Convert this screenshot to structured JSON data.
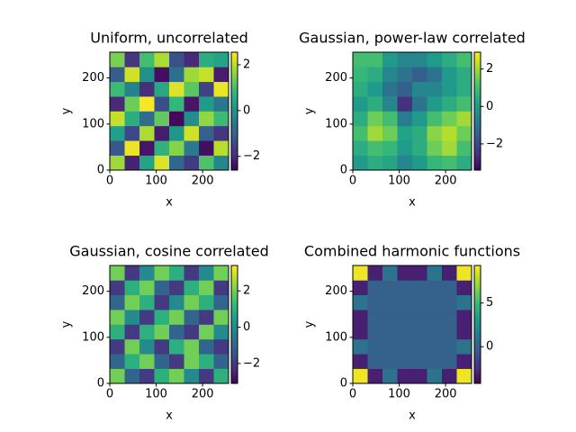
{
  "chart_data": [
    {
      "type": "heatmap",
      "title": "Uniform, uncorrelated",
      "xlabel": "x",
      "ylabel": "y",
      "colormap": "viridis",
      "xlim": [
        0,
        256
      ],
      "ylim": [
        0,
        256
      ],
      "xticks": [
        0,
        100,
        200
      ],
      "yticks": [
        0,
        100,
        200
      ],
      "clim": [
        -2.6,
        2.55
      ],
      "cticks": [
        {
          "value": -2,
          "label": "−2"
        },
        0,
        2
      ],
      "z": [
        [
          1.8,
          -2.1,
          0.4,
          2.3,
          -0.9,
          -1.7,
          1.1,
          -0.2
        ],
        [
          -1.2,
          2.4,
          -2.3,
          0.7,
          1.6,
          -0.5,
          -2.4,
          2.0
        ],
        [
          0.3,
          -1.5,
          1.9,
          -2.2,
          0.1,
          2.2,
          -1.0,
          -1.8
        ],
        [
          2.1,
          0.6,
          -0.8,
          1.3,
          -2.5,
          -0.1,
          1.7,
          0.9
        ],
        [
          -2.0,
          1.4,
          2.5,
          -1.4,
          0.8,
          -2.3,
          0.2,
          -0.6
        ],
        [
          0.9,
          -0.3,
          -1.9,
          0.5,
          2.3,
          1.2,
          -1.6,
          2.4
        ],
        [
          -1.1,
          2.2,
          0.0,
          -2.4,
          -0.7,
          1.8,
          2.1,
          -2.2
        ],
        [
          1.5,
          -1.8,
          1.0,
          1.9,
          -1.3,
          -2.0,
          0.6,
          0.4
        ]
      ]
    },
    {
      "type": "heatmap",
      "title": "Gaussian, power-law correlated",
      "xlabel": "x",
      "ylabel": "y",
      "colormap": "viridis",
      "xlim": [
        0,
        256
      ],
      "ylim": [
        0,
        256
      ],
      "xticks": [
        0,
        100,
        200
      ],
      "yticks": [
        0,
        100,
        200
      ],
      "clim": [
        -3.4,
        2.9
      ],
      "cticks": [
        {
          "value": -2,
          "label": "−2"
        },
        0,
        2
      ],
      "z": [
        [
          0,
          0.5,
          0.3,
          -0.5,
          0,
          0.8,
          1,
          0.5
        ],
        [
          0.5,
          1,
          0.8,
          0,
          0.5,
          1.5,
          2,
          1
        ],
        [
          1,
          2,
          1.5,
          0.2,
          0.5,
          1.8,
          2.2,
          1.5
        ],
        [
          0.5,
          1.5,
          1,
          -0.8,
          0,
          1,
          1.5,
          2
        ],
        [
          0,
          0.5,
          -0.5,
          -2.5,
          -1,
          0,
          0.5,
          1
        ],
        [
          0.5,
          0,
          -1,
          -1.5,
          -0.5,
          -0.5,
          0,
          0.5
        ],
        [
          0.8,
          0.5,
          -0.5,
          -1,
          -1.5,
          -1,
          0,
          0.5
        ],
        [
          1,
          1,
          0,
          -0.5,
          -0.5,
          0,
          0.5,
          1
        ]
      ]
    },
    {
      "type": "heatmap",
      "title": "Gaussian, cosine correlated",
      "xlabel": "x",
      "ylabel": "y",
      "colormap": "viridis",
      "xlim": [
        0,
        256
      ],
      "ylim": [
        0,
        256
      ],
      "xticks": [
        0,
        100,
        200
      ],
      "yticks": [
        0,
        100,
        200
      ],
      "clim": [
        -3.1,
        3.4
      ],
      "cticks": [
        {
          "value": -2,
          "label": "−2"
        },
        0,
        2
      ],
      "z": [
        [
          2,
          -1,
          -2,
          1,
          2,
          0,
          -2,
          1
        ],
        [
          -1,
          1,
          2,
          -1,
          -2,
          2,
          1,
          -1
        ],
        [
          -2,
          2,
          0,
          -2,
          1,
          2,
          -1,
          -2
        ],
        [
          1,
          -2,
          1,
          2,
          -1,
          -2,
          2,
          0
        ],
        [
          2,
          0,
          -2,
          1,
          2,
          -1,
          -2,
          2
        ],
        [
          -1,
          2,
          1,
          -2,
          0,
          2,
          1,
          -1
        ],
        [
          -2,
          1,
          2,
          -1,
          -2,
          1,
          2,
          -2
        ],
        [
          2,
          -2,
          0,
          2,
          1,
          -2,
          0,
          2
        ]
      ]
    },
    {
      "type": "heatmap",
      "title": "Combined harmonic functions",
      "xlabel": "x",
      "ylabel": "y",
      "colormap": "viridis",
      "xlim": [
        0,
        256
      ],
      "ylim": [
        0,
        256
      ],
      "xticks": [
        0,
        100,
        200
      ],
      "yticks": [
        0,
        100,
        200
      ],
      "clim": [
        -4.2,
        9.3
      ],
      "cticks": [
        0,
        5
      ],
      "z": [
        [
          9,
          -3,
          1,
          -3,
          -3,
          1,
          -3,
          9
        ],
        [
          -3,
          0,
          0,
          0,
          0,
          0,
          0,
          -3
        ],
        [
          1,
          0,
          0,
          0,
          0,
          0,
          0,
          1
        ],
        [
          -3,
          0,
          0,
          0,
          0,
          0,
          0,
          -3
        ],
        [
          -3,
          0,
          0,
          0,
          0,
          0,
          0,
          -3
        ],
        [
          1,
          0,
          0,
          0,
          0,
          0,
          0,
          1
        ],
        [
          -3,
          0,
          0,
          0,
          0,
          0,
          0,
          -3
        ],
        [
          9,
          -3,
          1,
          -3,
          -3,
          1,
          -3,
          9
        ]
      ]
    }
  ]
}
